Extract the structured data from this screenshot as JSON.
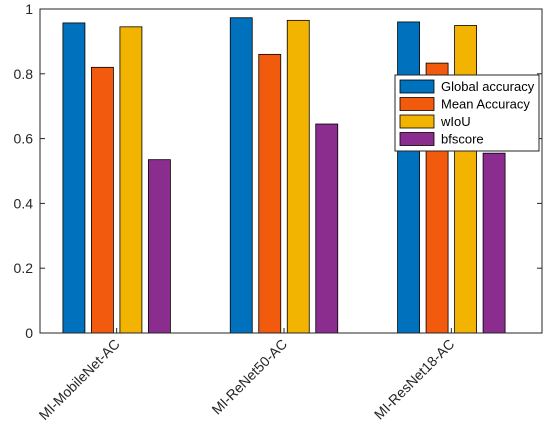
{
  "chart_data": {
    "type": "bar",
    "categories": [
      "MI-MobileNet-AC",
      "MI-ReNet50-AC",
      "MI-ResNet18-AC"
    ],
    "series": [
      {
        "name": "Global accuracy",
        "color": "#0072BD",
        "values": [
          0.957,
          0.973,
          0.96
        ]
      },
      {
        "name": "Mean Accuracy",
        "color": "#F25A0E",
        "values": [
          0.82,
          0.86,
          0.833
        ]
      },
      {
        "name": "wIoU",
        "color": "#F2B400",
        "values": [
          0.945,
          0.965,
          0.949
        ]
      },
      {
        "name": "bfscore",
        "color": "#8B2C8F",
        "values": [
          0.535,
          0.645,
          0.555
        ]
      }
    ],
    "ylim": [
      0,
      1
    ],
    "yticks": [
      "0",
      "0.2",
      "0.4",
      "0.6",
      "0.8",
      "1"
    ],
    "grid": false,
    "legend_position": "right"
  }
}
